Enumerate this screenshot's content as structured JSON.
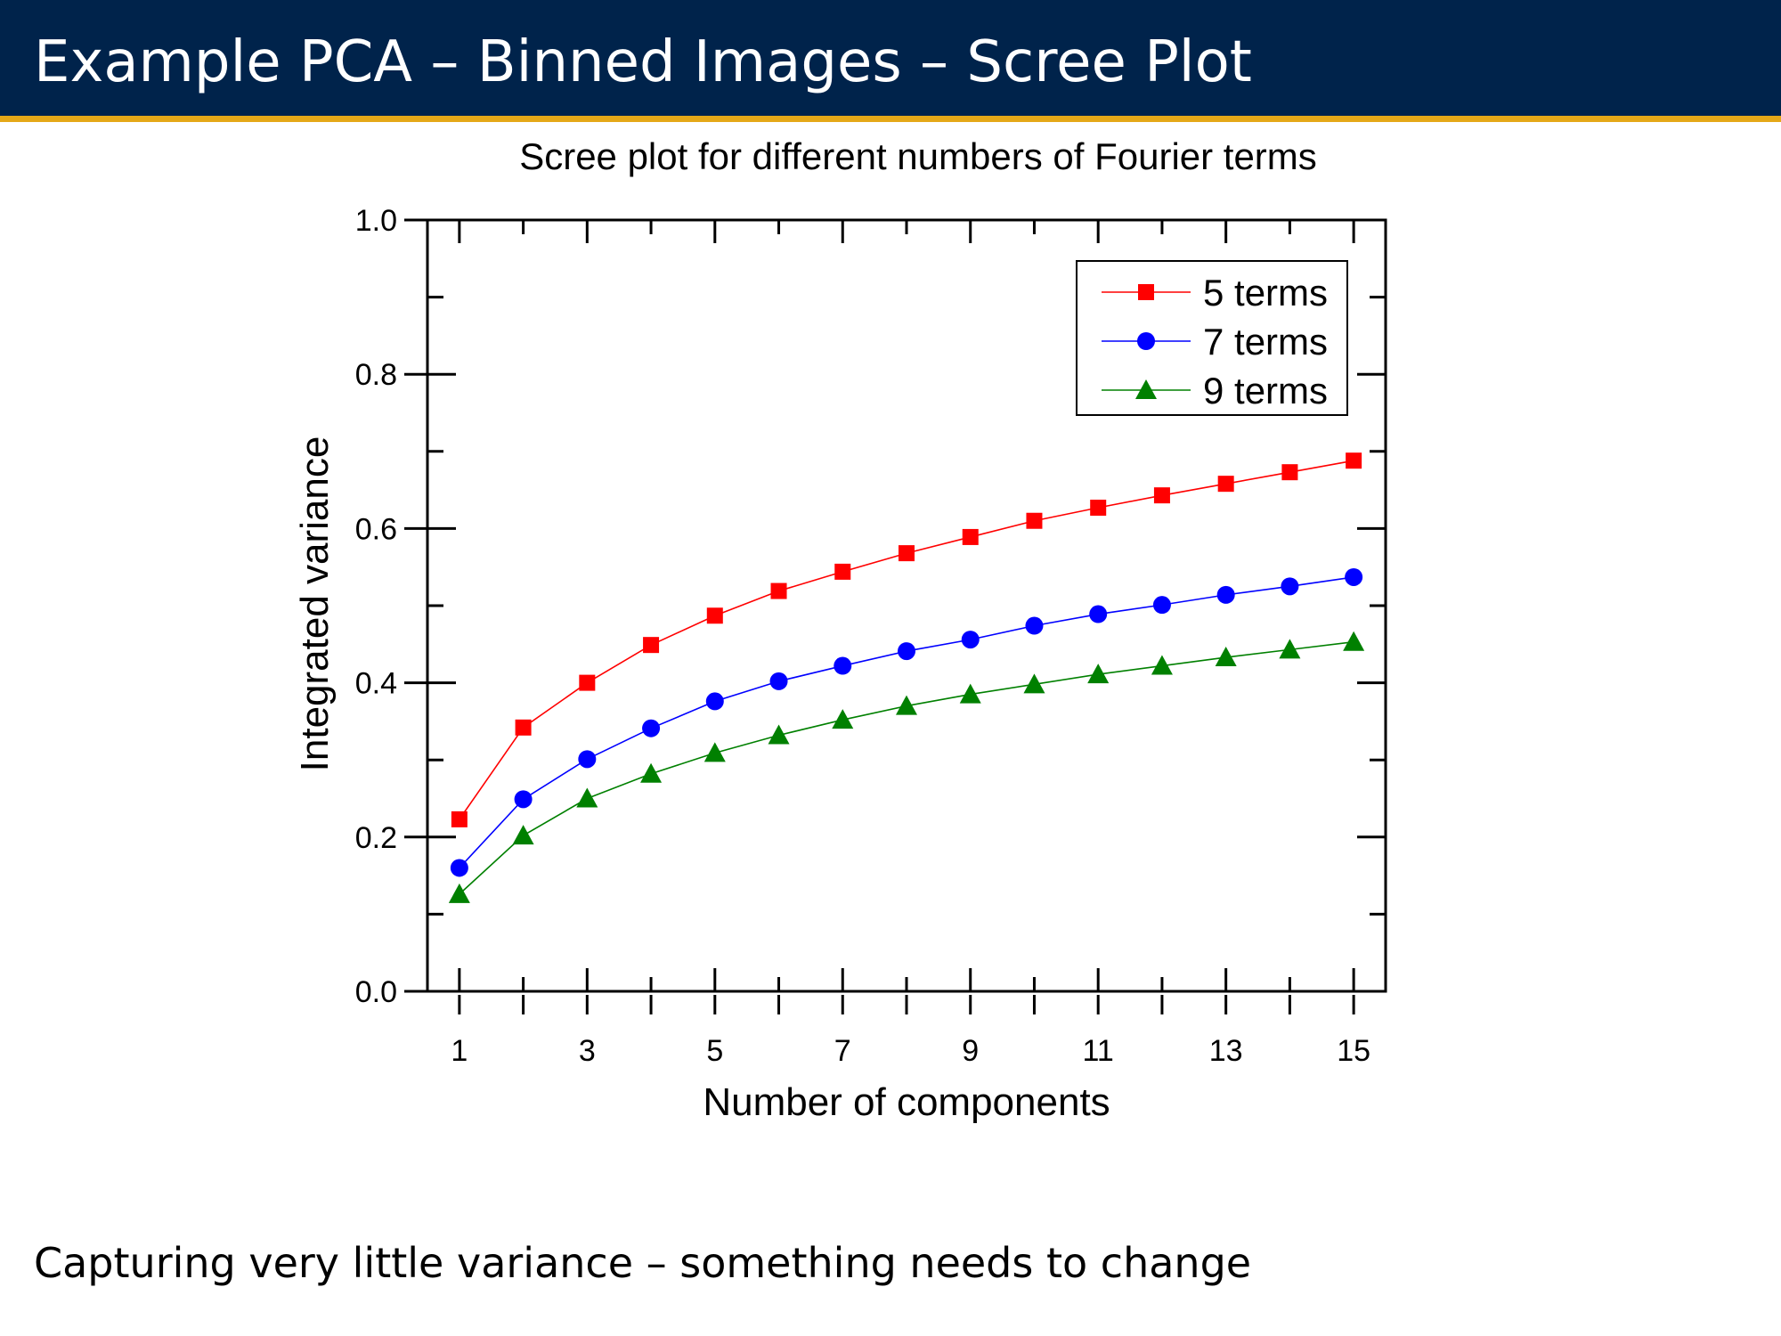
{
  "slide": {
    "title": "Example PCA – Binned Images – Scree Plot",
    "footer": "Capturing very little variance – something needs to change"
  },
  "colors": {
    "header_bg": "#00234b",
    "header_stripe": "#e5a818"
  },
  "chart_data": {
    "type": "line",
    "title": "Scree plot for different numbers of Fourier terms",
    "xlabel": "Number of components",
    "ylabel": "Integrated variance",
    "xlim": [
      0.5,
      15.5
    ],
    "ylim": [
      0.0,
      1.0
    ],
    "x_ticks": [
      1,
      3,
      5,
      7,
      9,
      11,
      13,
      15
    ],
    "y_ticks": [
      0.0,
      0.2,
      0.4,
      0.6,
      0.8,
      1.0
    ],
    "y_tick_labels": [
      "0.0",
      "0.2",
      "0.4",
      "0.6",
      "0.8",
      "1.0"
    ],
    "grid": false,
    "legend_position": "top-right",
    "x": [
      1,
      2,
      3,
      4,
      5,
      6,
      7,
      8,
      9,
      10,
      11,
      12,
      13,
      14,
      15
    ],
    "series": [
      {
        "name": "5 terms",
        "color": "#ff0000",
        "marker": "square",
        "values": [
          0.223,
          0.342,
          0.4,
          0.449,
          0.487,
          0.519,
          0.544,
          0.568,
          0.589,
          0.61,
          0.627,
          0.643,
          0.658,
          0.673,
          0.688
        ]
      },
      {
        "name": "7 terms",
        "color": "#0000ff",
        "marker": "circle",
        "values": [
          0.16,
          0.249,
          0.301,
          0.341,
          0.376,
          0.402,
          0.422,
          0.441,
          0.456,
          0.474,
          0.489,
          0.501,
          0.514,
          0.525,
          0.537
        ]
      },
      {
        "name": "9 terms",
        "color": "#008000",
        "marker": "triangle",
        "values": [
          0.126,
          0.202,
          0.25,
          0.282,
          0.309,
          0.332,
          0.352,
          0.37,
          0.385,
          0.398,
          0.411,
          0.422,
          0.433,
          0.443,
          0.453
        ]
      }
    ]
  }
}
